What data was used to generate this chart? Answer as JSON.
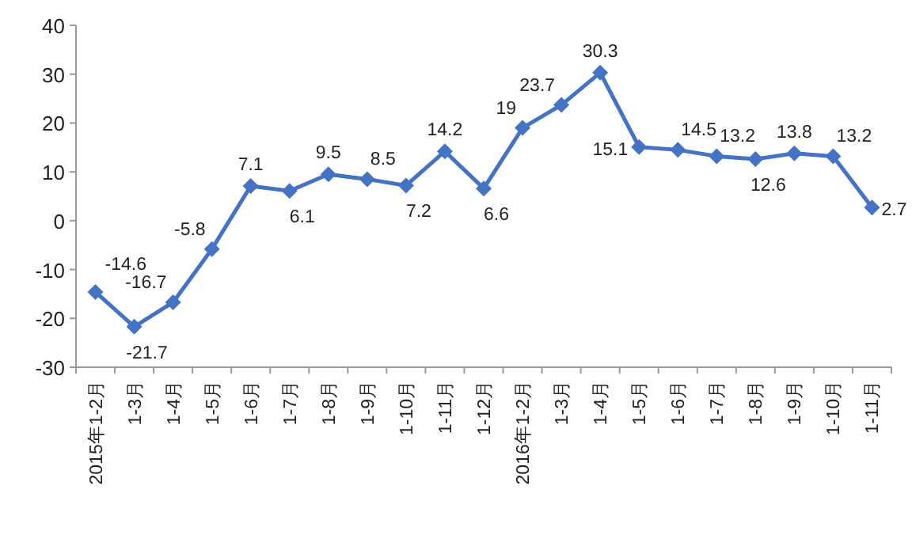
{
  "chart_data": {
    "type": "line",
    "categories": [
      "2015年1-2月",
      "1-3月",
      "1-4月",
      "1-5月",
      "1-6月",
      "1-7月",
      "1-8月",
      "1-9月",
      "1-10月",
      "1-11月",
      "1-12月",
      "2016年1-2月",
      "1-3月",
      "1-4月",
      "1-5月",
      "1-6月",
      "1-7月",
      "1-8月",
      "1-9月",
      "1-10月",
      "1-11月"
    ],
    "series": [
      {
        "color": "#4472c4",
        "values": [
          -14.6,
          -21.7,
          -16.7,
          -5.8,
          7.1,
          6.1,
          9.5,
          8.5,
          7.2,
          14.2,
          6.6,
          19,
          23.7,
          30.3,
          15.1,
          14.5,
          13.2,
          12.6,
          13.8,
          13.2,
          2.7
        ]
      }
    ],
    "ylim": [
      -30,
      40
    ],
    "yticks": [
      -30,
      -20,
      -10,
      0,
      10,
      20,
      30,
      40
    ],
    "marker": "diamond",
    "data_labels": true,
    "grid": false
  }
}
